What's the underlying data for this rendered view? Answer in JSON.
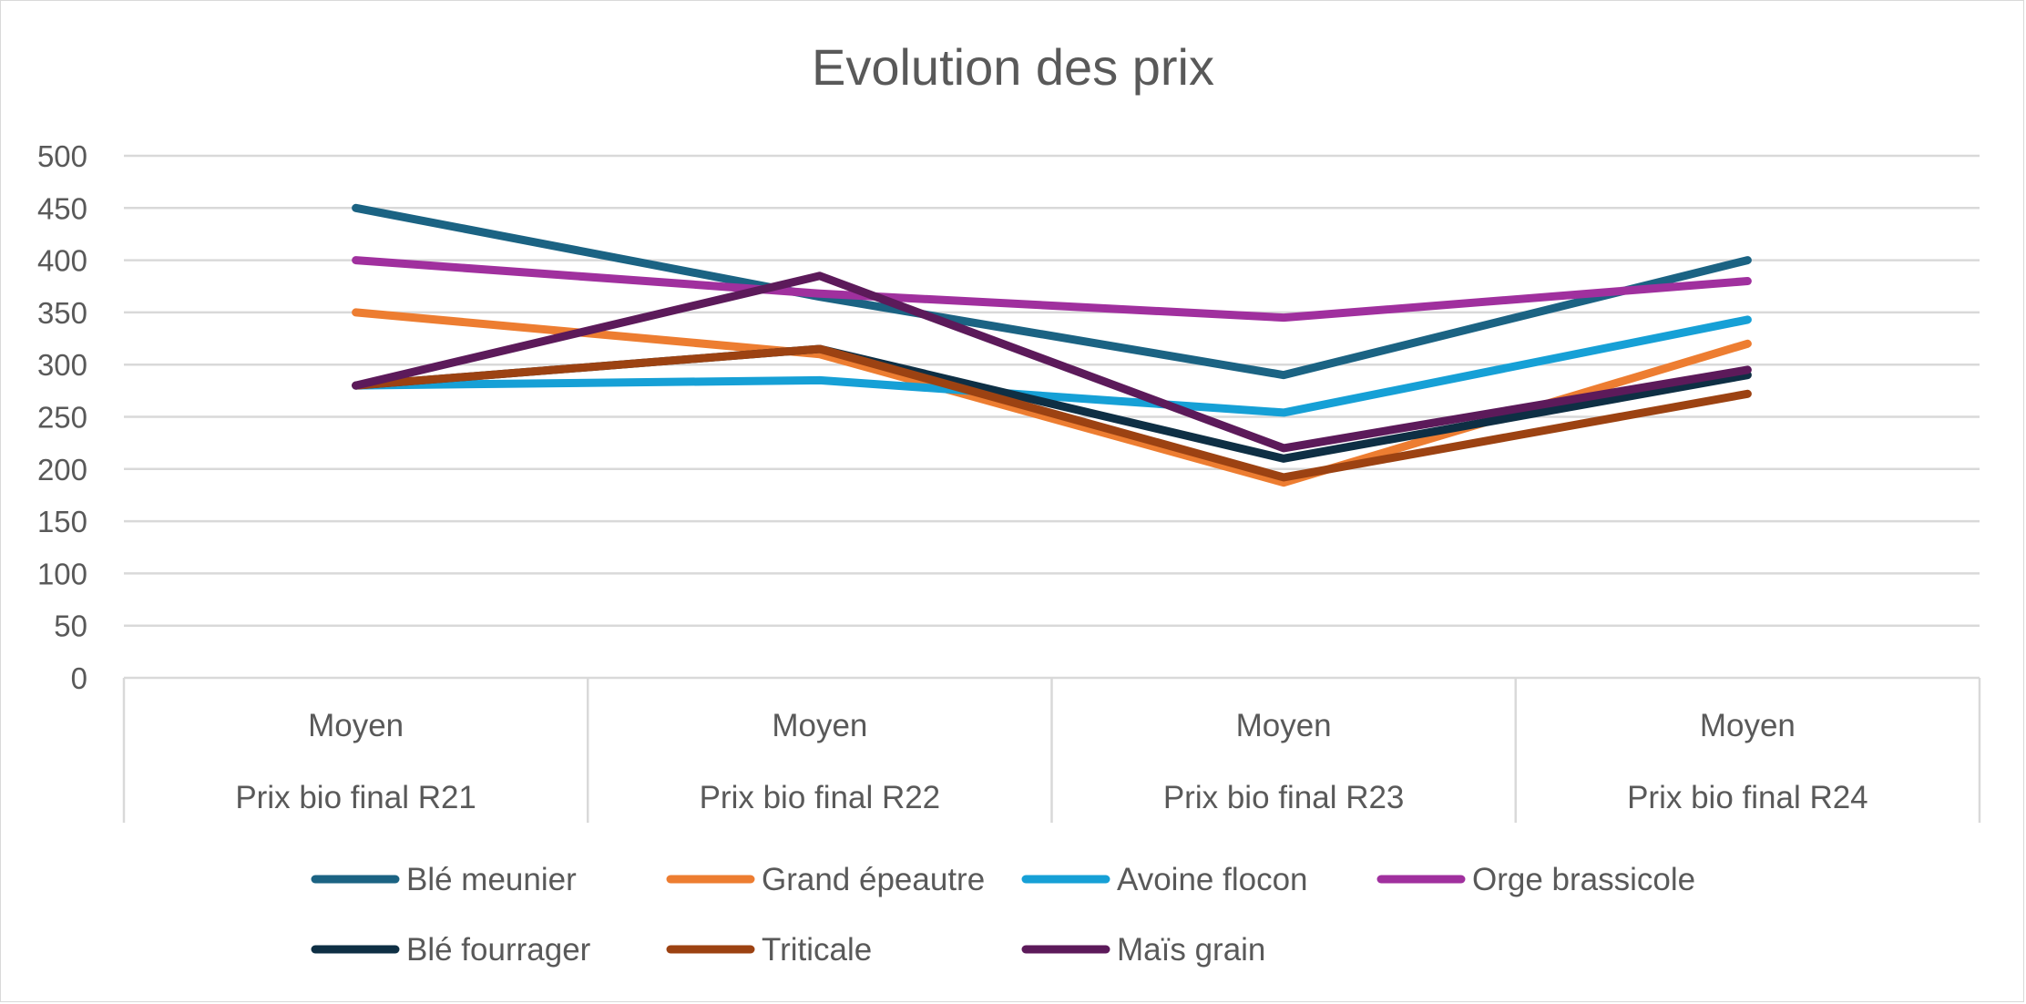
{
  "chart_data": {
    "type": "line",
    "title": "Evolution des prix",
    "xlabel": "",
    "ylabel": "",
    "ylim": [
      0,
      500
    ],
    "yticks": [
      0,
      50,
      100,
      150,
      200,
      250,
      300,
      350,
      400,
      450,
      500
    ],
    "grid": true,
    "legend_position": "bottom",
    "categories": [
      {
        "top": "Moyen",
        "bottom": "Prix bio final R21"
      },
      {
        "top": "Moyen",
        "bottom": "Prix bio final R22"
      },
      {
        "top": "Moyen",
        "bottom": "Prix bio final R23"
      },
      {
        "top": "Moyen",
        "bottom": "Prix bio final R24"
      }
    ],
    "series": [
      {
        "name": "Blé meunier",
        "color": "#1b6383",
        "values": [
          450,
          365,
          290,
          400
        ]
      },
      {
        "name": "Grand épeautre",
        "color": "#ed7d31",
        "values": [
          350,
          310,
          187,
          320
        ]
      },
      {
        "name": "Avoine flocon",
        "color": "#16a0d6",
        "values": [
          280,
          285,
          254,
          343
        ]
      },
      {
        "name": "Orge brassicole",
        "color": "#a0309e",
        "values": [
          400,
          368,
          345,
          380
        ]
      },
      {
        "name": "Blé fourrager",
        "color": "#0e2f44",
        "values": [
          280,
          315,
          210,
          290
        ]
      },
      {
        "name": "Triticale",
        "color": "#9c4212",
        "values": [
          280,
          315,
          192,
          272
        ]
      },
      {
        "name": "Maïs grain",
        "color": "#5c1a5a",
        "values": [
          280,
          385,
          220,
          295
        ]
      }
    ]
  }
}
